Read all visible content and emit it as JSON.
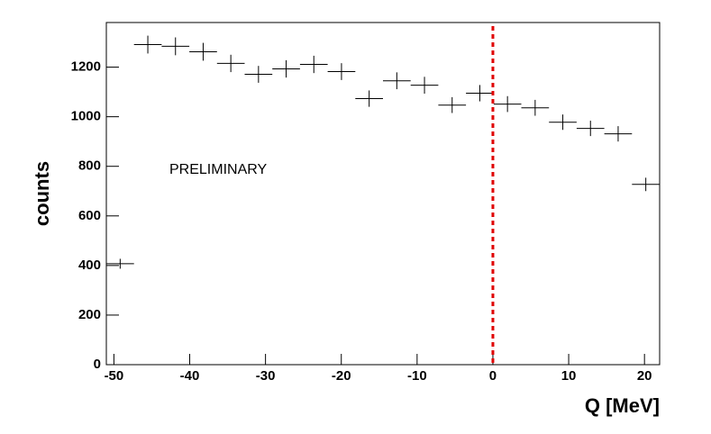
{
  "chart_data": {
    "type": "histogram",
    "x_label": "Q [MeV]",
    "y_label": "counts",
    "annotation": "PRELIMINARY",
    "bins": [
      -51,
      -47.35,
      -43.7,
      -40.05,
      -36.4,
      -32.75,
      -29.1,
      -25.45,
      -21.8,
      -18.15,
      -14.5,
      -10.85,
      -7.2,
      -3.55,
      0.1,
      3.75,
      7.4,
      11.05,
      14.7,
      18.35,
      22
    ],
    "values": [
      407,
      1291,
      1284,
      1262,
      1215,
      1171,
      1193,
      1211,
      1182,
      1073,
      1145,
      1127,
      1047,
      1095,
      1051,
      1036,
      978,
      953,
      931,
      727
    ],
    "errors": [
      20,
      36,
      36,
      36,
      35,
      34,
      35,
      35,
      34,
      33,
      34,
      34,
      32,
      33,
      32,
      32,
      31,
      31,
      31,
      27
    ],
    "color": "#000000",
    "xlim": [
      -51,
      22
    ],
    "ylim": [
      0,
      1380
    ],
    "xticks": [
      -50,
      -40,
      -30,
      -20,
      -10,
      0,
      10,
      20
    ],
    "yticks": [
      0,
      200,
      400,
      600,
      800,
      1000,
      1200
    ],
    "vline": {
      "x": 0,
      "color": "#e00000"
    }
  }
}
